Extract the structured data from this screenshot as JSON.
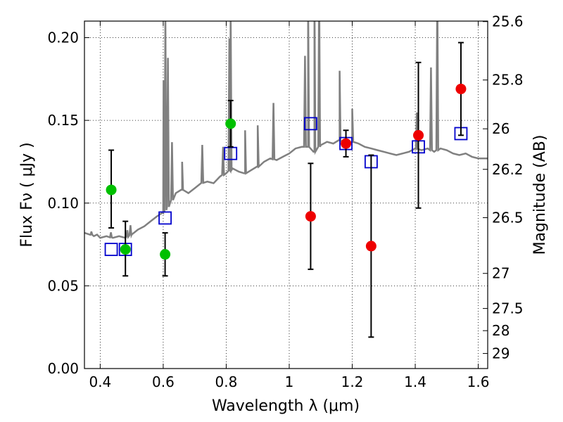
{
  "chart_data": {
    "type": "scatter",
    "xlabel": "Wavelength  λ (μm)",
    "ylabel": "Flux  Fν ( μJy )",
    "ylabel_right": "Magnitude (AB)",
    "xlim": [
      0.35,
      1.63
    ],
    "ylim": [
      0.0,
      0.21
    ],
    "grid": true,
    "x_ticks": [
      0.4,
      0.6,
      0.8,
      1.0,
      1.2,
      1.4,
      1.6
    ],
    "x_tick_labels": [
      "0.4",
      "0.6",
      "0.8",
      "1",
      "1.2",
      "1.4",
      "1.6"
    ],
    "y_ticks": [
      0.0,
      0.05,
      0.1,
      0.15,
      0.2
    ],
    "y_tick_labels": [
      "0.00",
      "0.05",
      "0.10",
      "0.15",
      "0.20"
    ],
    "right_ticks": [
      {
        "label": "25.6",
        "flux": 0.2097
      },
      {
        "label": "25.8",
        "flux": 0.1744
      },
      {
        "label": "26",
        "flux": 0.1449
      },
      {
        "label": "26.2",
        "flux": 0.1204
      },
      {
        "label": "26.5",
        "flux": 0.0912
      },
      {
        "label": "27",
        "flux": 0.0575
      },
      {
        "label": "27.5",
        "flux": 0.0363
      },
      {
        "label": "28",
        "flux": 0.0229
      },
      {
        "label": "29",
        "flux": 0.0091
      }
    ],
    "colors": {
      "template": "#808080",
      "green_points": "#00c000",
      "red_points": "#ee0000",
      "model_squares": "#0000cc",
      "errorbars": "#000000"
    },
    "series": [
      {
        "marker": "circle",
        "color": "green",
        "points": [
          {
            "x": 0.435,
            "y": 0.108,
            "ylo": 0.085,
            "yhi": 0.132
          },
          {
            "x": 0.48,
            "y": 0.072,
            "ylo": 0.056,
            "yhi": 0.089
          },
          {
            "x": 0.606,
            "y": 0.069,
            "ylo": 0.056,
            "yhi": 0.082
          },
          {
            "x": 0.814,
            "y": 0.148,
            "ylo": 0.134,
            "yhi": 0.162
          }
        ]
      },
      {
        "marker": "circle",
        "color": "red",
        "points": [
          {
            "x": 1.068,
            "y": 0.092,
            "ylo": 0.06,
            "yhi": 0.124
          },
          {
            "x": 1.18,
            "y": 0.136,
            "ylo": 0.128,
            "yhi": 0.144
          },
          {
            "x": 1.26,
            "y": 0.074,
            "ylo": 0.019,
            "yhi": 0.129
          },
          {
            "x": 1.41,
            "y": 0.141,
            "ylo": 0.097,
            "yhi": 0.185
          },
          {
            "x": 1.545,
            "y": 0.169,
            "ylo": 0.141,
            "yhi": 0.197
          }
        ]
      },
      {
        "marker": "square",
        "color": "blue",
        "points": [
          {
            "x": 0.435,
            "y": 0.072
          },
          {
            "x": 0.48,
            "y": 0.072
          },
          {
            "x": 0.606,
            "y": 0.091
          },
          {
            "x": 0.814,
            "y": 0.13
          },
          {
            "x": 1.068,
            "y": 0.148
          },
          {
            "x": 1.18,
            "y": 0.136
          },
          {
            "x": 1.26,
            "y": 0.125
          },
          {
            "x": 1.41,
            "y": 0.134
          },
          {
            "x": 1.545,
            "y": 0.142
          }
        ]
      }
    ],
    "template_spectrum": {
      "x": [
        0.35,
        0.37,
        0.38,
        0.39,
        0.4,
        0.42,
        0.44,
        0.46,
        0.48,
        0.5,
        0.52,
        0.54,
        0.56,
        0.58,
        0.6,
        0.62,
        0.64,
        0.66,
        0.68,
        0.7,
        0.72,
        0.74,
        0.76,
        0.78,
        0.8,
        0.82,
        0.84,
        0.86,
        0.88,
        0.9,
        0.92,
        0.94,
        0.96,
        0.98,
        1.0,
        1.02,
        1.04,
        1.06,
        1.08,
        1.1,
        1.12,
        1.14,
        1.16,
        1.18,
        1.2,
        1.22,
        1.24,
        1.26,
        1.28,
        1.3,
        1.32,
        1.34,
        1.36,
        1.38,
        1.4,
        1.42,
        1.44,
        1.46,
        1.48,
        1.5,
        1.52,
        1.54,
        1.56,
        1.58,
        1.6,
        1.63
      ],
      "y": [
        0.082,
        0.081,
        0.08,
        0.081,
        0.079,
        0.08,
        0.079,
        0.08,
        0.079,
        0.081,
        0.084,
        0.086,
        0.089,
        0.092,
        0.094,
        0.099,
        0.106,
        0.108,
        0.106,
        0.109,
        0.112,
        0.113,
        0.112,
        0.116,
        0.118,
        0.121,
        0.119,
        0.118,
        0.12,
        0.122,
        0.125,
        0.127,
        0.126,
        0.128,
        0.13,
        0.133,
        0.134,
        0.134,
        0.131,
        0.135,
        0.137,
        0.136,
        0.138,
        0.134,
        0.137,
        0.136,
        0.134,
        0.133,
        0.132,
        0.131,
        0.13,
        0.129,
        0.13,
        0.131,
        0.133,
        0.132,
        0.133,
        0.131,
        0.133,
        0.132,
        0.13,
        0.129,
        0.13,
        0.128,
        0.127,
        0.127
      ]
    },
    "emission_lines": [
      {
        "x": 0.372,
        "h": 0.002
      },
      {
        "x": 0.434,
        "h": 0.003
      },
      {
        "x": 0.486,
        "h": 0.004
      },
      {
        "x": 0.496,
        "h": 0.006
      },
      {
        "x": 0.601,
        "h": 0.08
      },
      {
        "x": 0.607,
        "h": 0.12
      },
      {
        "x": 0.615,
        "h": 0.09
      },
      {
        "x": 0.628,
        "h": 0.035
      },
      {
        "x": 0.66,
        "h": 0.017
      },
      {
        "x": 0.724,
        "h": 0.023
      },
      {
        "x": 0.79,
        "h": 0.017
      },
      {
        "x": 0.81,
        "h": 0.08
      },
      {
        "x": 0.814,
        "h": 0.1
      },
      {
        "x": 0.86,
        "h": 0.026
      },
      {
        "x": 0.9,
        "h": 0.025
      },
      {
        "x": 0.95,
        "h": 0.034
      },
      {
        "x": 1.05,
        "h": 0.055
      },
      {
        "x": 1.06,
        "h": 0.09
      },
      {
        "x": 1.08,
        "h": 0.1
      },
      {
        "x": 1.095,
        "h": 0.1
      },
      {
        "x": 1.16,
        "h": 0.042
      },
      {
        "x": 1.2,
        "h": 0.02
      },
      {
        "x": 1.405,
        "h": 0.022
      },
      {
        "x": 1.45,
        "h": 0.05
      },
      {
        "x": 1.47,
        "h": 0.1
      }
    ]
  }
}
